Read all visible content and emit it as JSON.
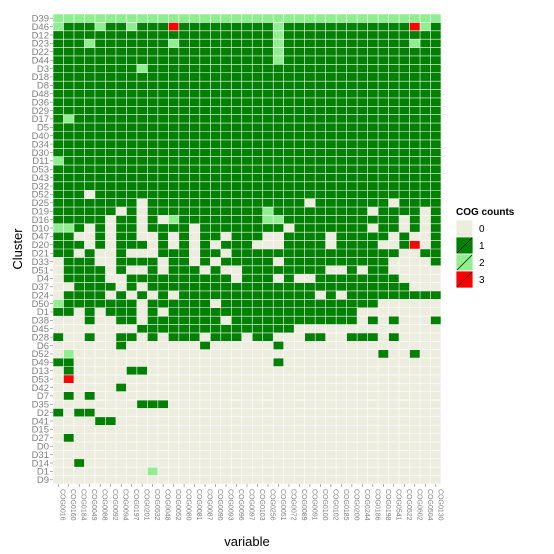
{
  "chart_data": {
    "type": "heatmap",
    "xlabel": "variable",
    "ylabel": "Cluster",
    "legend": {
      "title": "COG counts",
      "placement": "right",
      "levels": [
        "0",
        "1",
        "2",
        "3"
      ],
      "colors": {
        "0": "#ededdf",
        "1": "#008000",
        "2": "#90ee90",
        "3": "#ff0000"
      }
    },
    "columns": [
      "COG0016",
      "COG0160",
      "COG0184",
      "COG0049",
      "COG0088",
      "COG0092",
      "COG0094",
      "COG0197",
      "COG0201",
      "COG0532",
      "COG0048",
      "COG0052",
      "COG0080",
      "COG0081",
      "COG0087",
      "COG0090",
      "COG0093",
      "COG0096",
      "COG0097",
      "COG0103",
      "COG0256",
      "COG0051",
      "COG0072",
      "COG0089",
      "COG0091",
      "COG0100",
      "COG0102",
      "COG0185",
      "COG0200",
      "COG0244",
      "COG0186",
      "COG0198",
      "COG0541",
      "COG0522",
      "COG0602",
      "COG0504",
      "COG0130"
    ],
    "rows": [
      "D39",
      "D46",
      "D12",
      "D23",
      "D22",
      "D44",
      "D3",
      "D18",
      "D8",
      "D48",
      "D36",
      "D29",
      "D17",
      "D5",
      "D40",
      "D34",
      "D30",
      "D11",
      "D53",
      "D43",
      "D32",
      "D52",
      "D25",
      "D19",
      "D16",
      "D10",
      "D47",
      "D20",
      "D21",
      "D33",
      "D51",
      "D4",
      "D37",
      "D24",
      "D50",
      "D1",
      "D38",
      "D45",
      "D28",
      "D6",
      "D52",
      "D49",
      "D13",
      "D53",
      "D42",
      "D7",
      "D35",
      "D2",
      "D41",
      "D15",
      "D27",
      "D0",
      "D31",
      "D14",
      "D1",
      "D9"
    ],
    "values": [
      "2222222222222222222222222222222222222",
      "2111211211131111111112111111111111321",
      "1111111111111111111112111111111111111",
      "1112111111121111111112111111111111211",
      "1111111111111111111112111111111111111",
      "1111111111111111111112111111111111111",
      "1111111121111111111111111111111111111",
      "1111111111111111111111111111111111111",
      "1111111111111111111111111111111111111",
      "1111111111111111111111111111111111111",
      "1111111111111111111111111111111111111",
      "1111111111111111111111111111111111111",
      "1211111111111111111111111111111111111",
      "1111111111111111111111111111111111111",
      "1111111111111111111111111111111111111",
      "1111111111111111111111111111111111111",
      "1111111111111111111111111111111111111",
      "2111111111111111111111111111111111111",
      "1111111111111111111111111111111111111",
      "1111111111111111111111111111111111111",
      "1111111111111111111111111111111111111",
      "1110111111111111111111111111111111111",
      "1111111101111111111111110111111101111",
      "1111110101111111111121111111110111101",
      "1111101101021111111122111111111110101",
      "2210101101111011111111011111110110101",
      "1100101100101011011100111101111101001",
      "1110101110101010111000111101111001301",
      "1101001000111011011111111111111110011",
      "0111001111011010111110111111111100001",
      "0111101001011101001111111100101100000",
      "0111100111111111101110100111111110000",
      "0011110101111111111111111111111111000",
      "0111101010101111111111111010111111111",
      "2111111101111110111111111111111000000",
      "1101011101011111111111111111100000000",
      "0001001101111111011111111111101010001",
      "0000000011111111111111100000000000000",
      "1001001101011101110110001100111010000",
      "0000001000000010000001000000000000000",
      "0200000000000000000000000000000100100",
      "1100000000000000000001000000000000000",
      "0100000110000000000000000000000000000",
      "0300000000000000000000000000000000000",
      "0000001000000000000000000000000000000",
      "0101000000000000000000000000000000000",
      "0000000011100000000000000000000000000",
      "1011000000000000000000000000000000000",
      "0000110000000000000000000000000000000",
      "0000000000000000000000000000000000000",
      "0100000000000000000000000000000000000",
      "0000000000000000000000000000000000000",
      "0000000000000000000000000000000000000",
      "0010000000000000000000000000000000000",
      "0000000002000000000000000000000000000",
      "0000000000000000000000000000000000000"
    ]
  }
}
